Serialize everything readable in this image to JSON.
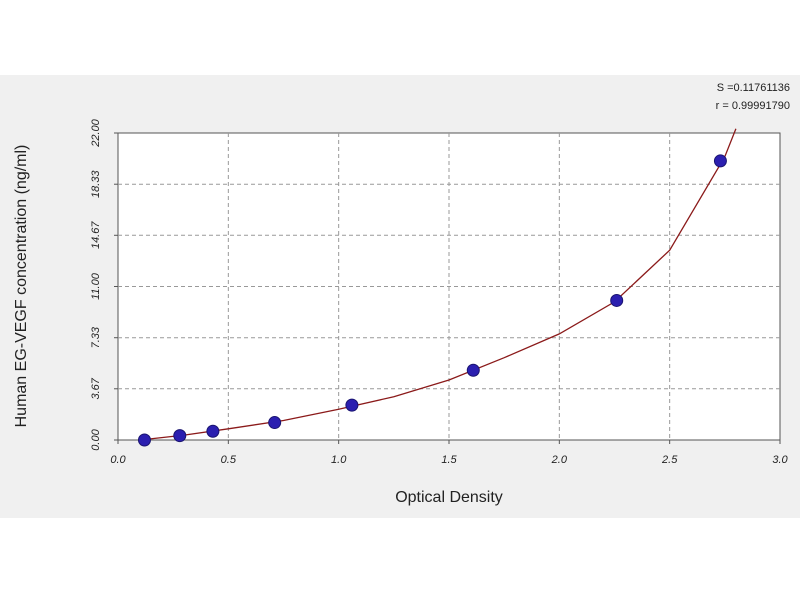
{
  "chart_data": {
    "type": "scatter",
    "x": [
      0.12,
      0.28,
      0.43,
      0.71,
      1.06,
      1.61,
      2.26,
      2.73
    ],
    "values": [
      0,
      0.3125,
      0.625,
      1.25,
      2.5,
      5,
      10,
      20
    ],
    "color": "#2b1fb0",
    "fit": {
      "x": [
        0.1,
        0.3,
        0.5,
        0.75,
        1.0,
        1.25,
        1.5,
        1.75,
        2.0,
        2.25,
        2.5,
        2.75,
        2.8
      ],
      "values": [
        0,
        0.35,
        0.8,
        1.4,
        2.2,
        3.1,
        4.3,
        5.9,
        7.6,
        9.9,
        13.6,
        20.3,
        22.3
      ],
      "color": "#8b1a1a"
    },
    "xlabel": "Optical Density",
    "ylabel": "Human EG-VEGF concentration (ng/ml)",
    "annotations": [
      "S =0.11761136",
      "r = 0.99991790"
    ],
    "xlim": [
      0,
      3
    ],
    "ylim": [
      0,
      22
    ],
    "xticks": [
      {
        "value": 0,
        "label": "0.0"
      },
      0.5,
      {
        "value": 1,
        "label": "1.0"
      },
      1.5,
      {
        "value": 2,
        "label": "2.0"
      },
      2.5,
      {
        "value": 3,
        "label": "3.0"
      }
    ],
    "yticks": [
      {
        "value": 0,
        "label": "0.00"
      },
      3.67,
      7.33,
      {
        "value": 11,
        "label": "11.00"
      },
      14.67,
      18.33,
      {
        "value": 22,
        "label": "22.00"
      }
    ],
    "grid": true
  }
}
